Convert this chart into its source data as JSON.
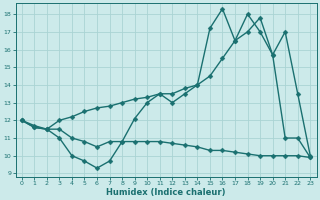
{
  "xlabel": "Humidex (Indice chaleur)",
  "bg_color": "#cceaea",
  "grid_color": "#aad4d4",
  "line_color": "#1a7070",
  "xlim": [
    -0.5,
    23.5
  ],
  "ylim": [
    8.8,
    18.6
  ],
  "xticks": [
    0,
    1,
    2,
    3,
    4,
    5,
    6,
    7,
    8,
    9,
    10,
    11,
    12,
    13,
    14,
    15,
    16,
    17,
    18,
    19,
    20,
    21,
    22,
    23
  ],
  "yticks": [
    9,
    10,
    11,
    12,
    13,
    14,
    15,
    16,
    17,
    18
  ],
  "line_zigzag_x": [
    0,
    1,
    2,
    3,
    4,
    5,
    6,
    7,
    8,
    9,
    10,
    11,
    12,
    13,
    14,
    15,
    16,
    17,
    18,
    19,
    20,
    21,
    22,
    23
  ],
  "line_zigzag_y": [
    12,
    11.6,
    11.5,
    11.0,
    10.0,
    9.7,
    9.3,
    9.7,
    10.8,
    12.1,
    13.0,
    13.5,
    13.0,
    13.5,
    14.0,
    17.2,
    18.3,
    16.5,
    18.0,
    17.0,
    15.7,
    11.0,
    11.0,
    9.9
  ],
  "line_linear_x": [
    0,
    1,
    2,
    3,
    4,
    5,
    6,
    7,
    8,
    9,
    10,
    11,
    12,
    13,
    14,
    15,
    16,
    17,
    18,
    19,
    20,
    21,
    22,
    23
  ],
  "line_linear_y": [
    12,
    11.7,
    11.5,
    12.0,
    12.2,
    12.5,
    12.7,
    12.8,
    13.0,
    13.2,
    13.3,
    13.5,
    13.5,
    13.8,
    14.0,
    14.5,
    15.5,
    16.5,
    17.0,
    17.8,
    15.7,
    17.0,
    13.5,
    10.0
  ],
  "line_flat_x": [
    0,
    1,
    2,
    3,
    4,
    5,
    6,
    7,
    8,
    9,
    10,
    11,
    12,
    13,
    14,
    15,
    16,
    17,
    18,
    19,
    20,
    21,
    22,
    23
  ],
  "line_flat_y": [
    12,
    11.6,
    11.5,
    11.5,
    11.0,
    10.8,
    10.5,
    10.8,
    10.8,
    10.8,
    10.8,
    10.8,
    10.7,
    10.6,
    10.5,
    10.3,
    10.3,
    10.2,
    10.1,
    10.0,
    10.0,
    10.0,
    10.0,
    9.9
  ],
  "marker": "D",
  "markersize": 2.5,
  "linewidth": 1.0
}
